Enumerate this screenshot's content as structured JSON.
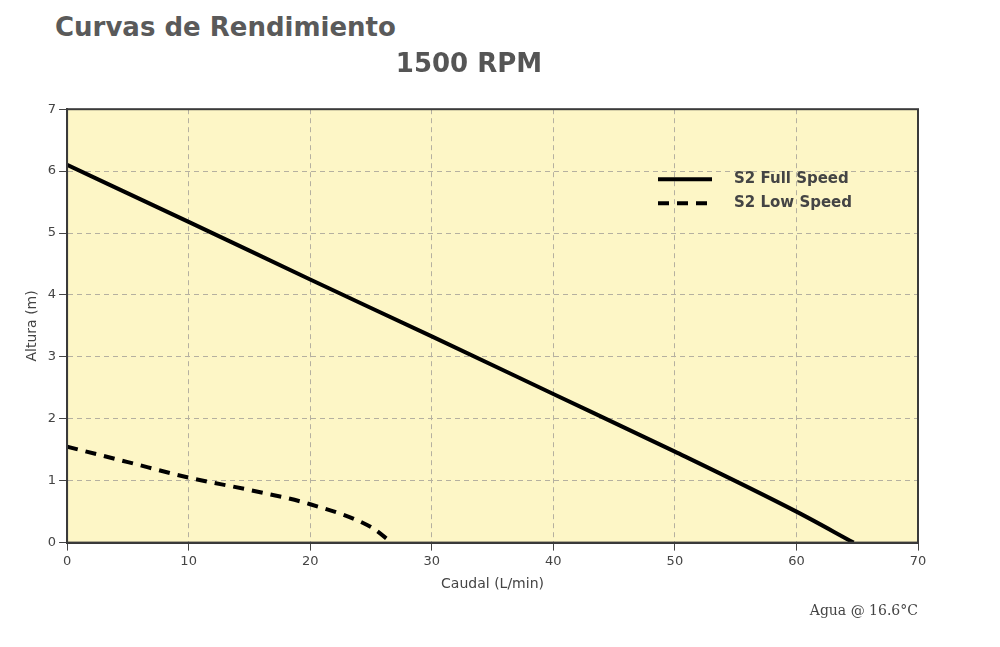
{
  "header": "Curvas de Rendimiento",
  "chart_data": {
    "type": "line",
    "title": "1500 RPM",
    "x_label": "Caudal (L/min)",
    "y_label": "Altura (m)",
    "annotation": "Agua @ 16.6°C",
    "series": [
      {
        "name": "S2 Full Speed",
        "color": "#000000",
        "line_style": "solid",
        "x": [
          0,
          10,
          20,
          30,
          40,
          50,
          60,
          64.7
        ],
        "values": [
          6.1,
          5.18,
          4.25,
          3.33,
          2.4,
          1.47,
          0.5,
          0
        ]
      },
      {
        "name": "S2 Low Speed",
        "color": "#000000",
        "line_style": "dashed",
        "x": [
          0,
          5,
          10,
          15,
          20,
          25,
          26.7
        ],
        "values": [
          1.55,
          1.3,
          1.05,
          0.85,
          0.62,
          0.25,
          0
        ]
      }
    ],
    "xlim": [
      0,
      70
    ],
    "xticks": [
      0,
      10,
      20,
      30,
      40,
      50,
      60,
      70
    ],
    "ylim": [
      0,
      7
    ],
    "yticks": [
      0,
      1,
      2,
      3,
      4,
      5,
      6,
      7
    ],
    "grid": true,
    "legend": "upper right"
  }
}
